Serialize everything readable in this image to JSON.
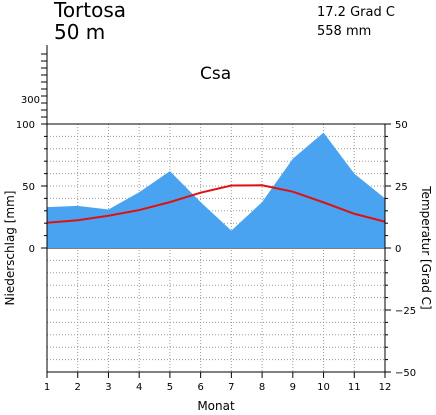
{
  "chart_data": {
    "type": "area",
    "station": "Tortosa",
    "elevation": "50 m",
    "mean_temperature": "17.2 Grad C",
    "annual_precipitation": "558 mm",
    "climate_class": "Csa",
    "xlabel": "Monat",
    "ylabel_left": "Niederschlag [mm]",
    "ylabel_right": "Temperatur [Grad C]",
    "categories": [
      "1",
      "2",
      "3",
      "4",
      "5",
      "6",
      "7",
      "8",
      "9",
      "10",
      "11",
      "12"
    ],
    "x_ticks": [
      "1",
      "2",
      "3",
      "4",
      "5",
      "6",
      "7",
      "8",
      "9",
      "10",
      "11",
      "12"
    ],
    "left_ticks": [
      "100",
      "50",
      "0"
    ],
    "left_upper_tick": "300",
    "right_ticks": [
      "50",
      "25",
      "0",
      "−25",
      "−50"
    ],
    "precip_ylim": [
      0,
      100
    ],
    "temp_ylim": [
      -50,
      50
    ],
    "grid": true,
    "series": [
      {
        "kind": "precipitation",
        "unit": "mm",
        "color": "#4aa3f0",
        "values": [
          33,
          34,
          31,
          45,
          62,
          37,
          14,
          37,
          72,
          93,
          60,
          40
        ]
      },
      {
        "kind": "temperature",
        "unit": "Grad C",
        "color": "#e01010",
        "values": [
          10.2,
          11.2,
          13.0,
          15.3,
          18.5,
          22.3,
          25.2,
          25.3,
          22.7,
          18.4,
          13.8,
          10.6
        ]
      }
    ]
  }
}
